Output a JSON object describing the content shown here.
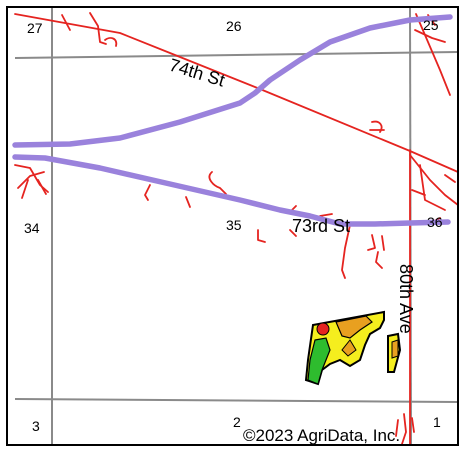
{
  "map": {
    "section_labels": {
      "s27": "27",
      "s26": "26",
      "s25": "25",
      "s34": "34",
      "s35": "35",
      "s36": "36",
      "s3": "3",
      "s2": "2",
      "s1": "1"
    },
    "roads": {
      "st74": "74th St",
      "st73": "73rd St",
      "ave80": "80th Ave"
    },
    "copyright": "©2023 AgriData, Inc.",
    "colors": {
      "border": "#000000",
      "section_line": "#8a8a8a",
      "highway": "#9a82dc",
      "road": "#e52420",
      "field_yellow": "#f5ee1e",
      "field_orange": "#e8a020",
      "field_green": "#2ebc2e",
      "field_red": "#e52420"
    }
  }
}
